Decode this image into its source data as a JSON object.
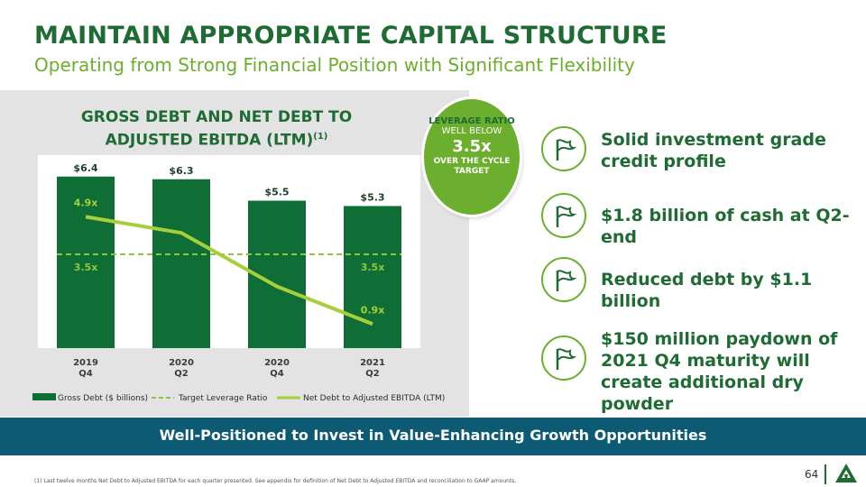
{
  "header": {
    "title": "MAINTAIN APPROPRIATE CAPITAL STRUCTURE",
    "subtitle": "Operating from Strong Financial Position with Significant Flexibility"
  },
  "chart_title": {
    "line1": "GROSS DEBT AND NET DEBT TO",
    "line2": "ADJUSTED EBITDA (LTM)",
    "footnote_ref": "(1)"
  },
  "chart_data": {
    "type": "bar",
    "title": "GROSS DEBT AND NET DEBT TO ADJUSTED EBITDA (LTM)(1)",
    "categories": [
      [
        "2019",
        "Q4"
      ],
      [
        "2020",
        "Q2"
      ],
      [
        "2020",
        "Q4"
      ],
      [
        "2021",
        "Q2"
      ]
    ],
    "series": [
      {
        "name": "Gross Debt ($ billions)",
        "type": "bar",
        "values": [
          6.4,
          6.3,
          5.5,
          5.3
        ],
        "labels": [
          "$6.4",
          "$6.3",
          "$5.5",
          "$5.3"
        ],
        "color": "#0e6e35"
      },
      {
        "name": "Target Leverage Ratio",
        "type": "line",
        "style": "dashed",
        "values": [
          3.5,
          3.5,
          3.5,
          3.5
        ],
        "labels": [
          "3.5x",
          "",
          "",
          "3.5x"
        ],
        "color": "#8cc63f"
      },
      {
        "name": "Net Debt to Adjusted EBITDA (LTM)",
        "type": "line",
        "values": [
          4.9,
          4.3,
          2.3,
          0.9
        ],
        "labels": [
          "4.9x",
          "",
          "",
          "0.9x"
        ],
        "color": "#a6cf3a"
      }
    ],
    "bar_axis_max": 7.2,
    "ratio_axis_max": 7.2,
    "legend_position": "bottom",
    "grid": false
  },
  "leverage_badge": {
    "line1": "LEVERAGE RATIO",
    "line2": "WELL BELOW",
    "value": "3.5x",
    "line4": "OVER THE CYCLE TARGET"
  },
  "bullets": [
    {
      "text": "Solid investment grade credit profile",
      "icon": "flag-icon"
    },
    {
      "text": "$1.8 billion of cash at Q2-end",
      "icon": "flag-icon"
    },
    {
      "text": "Reduced debt by $1.1 billion",
      "icon": "flag-icon"
    },
    {
      "text": "$150 million paydown of 2021 Q4 maturity will create additional dry powder",
      "icon": "flag-icon"
    }
  ],
  "banner": "Well-Positioned to Invest in Value-Enhancing Growth Opportunities",
  "footnote": "(1) Last twelve months Net Debt to Adjusted EBITDA for each quarter presented. See appendix for definition of Net Debt to Adjusted EBITDA and reconciliation to GAAP amounts.",
  "page_number": "64",
  "colors": {
    "brand_green": "#1e6b34",
    "light_green": "#6cae2e",
    "bar_green": "#0e6e35",
    "banner_blue": "#0c5a73"
  }
}
